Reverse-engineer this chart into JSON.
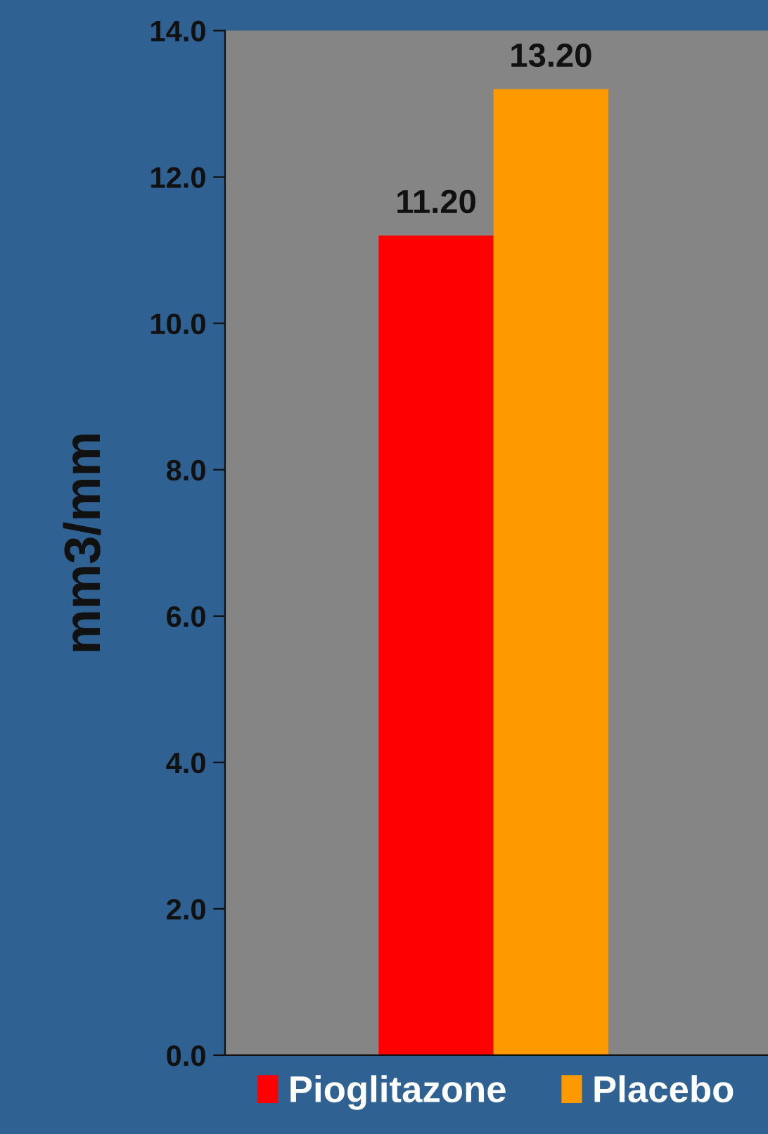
{
  "chart_data": {
    "type": "bar",
    "ylabel": "mm3/mm",
    "categories": [
      null
    ],
    "series": [
      {
        "name": "Pioglitazone",
        "color": "#ff0000",
        "values": [
          11.2
        ],
        "value_labels": [
          "11.20"
        ]
      },
      {
        "name": "Placebo",
        "color": "#ff9900",
        "values": [
          13.2
        ],
        "value_labels": [
          "13.20"
        ]
      }
    ],
    "ylim": [
      0,
      14
    ],
    "yticks": [
      {
        "value": 0,
        "label": "0.0"
      },
      {
        "value": 2,
        "label": "2.0"
      },
      {
        "value": 4,
        "label": "4.0"
      },
      {
        "value": 6,
        "label": "6.0"
      },
      {
        "value": 8,
        "label": "8.0"
      },
      {
        "value": 10,
        "label": "10.0"
      },
      {
        "value": 12,
        "label": "12.0"
      },
      {
        "value": 14,
        "label": "14.0"
      }
    ],
    "grid": false,
    "legend": "bottom"
  }
}
